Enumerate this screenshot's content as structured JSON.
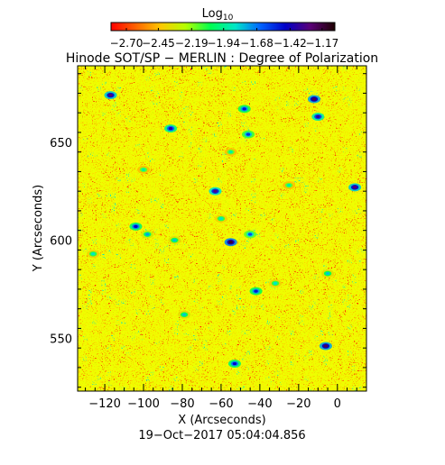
{
  "chart_data": {
    "type": "heatmap",
    "title": "Hinode SOT/SP − MERLIN : Degree of Polarization",
    "xlabel": "X (Arcseconds)",
    "ylabel": "Y (Arcseconds)",
    "xlim": [
      -134,
      15
    ],
    "ylim": [
      523,
      689
    ],
    "x_ticks": [
      -120,
      -100,
      -80,
      -60,
      -40,
      -20,
      0
    ],
    "x_tick_labels": [
      "−120",
      "−100",
      "−80",
      "−60",
      "−40",
      "−20",
      "0"
    ],
    "y_ticks": [
      550,
      600,
      650
    ],
    "y_tick_labels": [
      "550",
      "600",
      "650"
    ],
    "timestamp": "19−Oct−2017 05:04:04.856",
    "colorbar": {
      "title_base": "Log",
      "title_sub": "10",
      "scale": "log10",
      "range": [
        -2.82,
        -1.07
      ],
      "ticks": [
        -2.7,
        -2.45,
        -2.19,
        -1.94,
        -1.68,
        -1.42,
        -1.17
      ],
      "tick_labels": [
        "−2.70",
        "−2.45",
        "−2.19",
        "−1.94",
        "−1.68",
        "−1.42",
        "−1.17"
      ],
      "colors": [
        "#ff0000",
        "#ff6400",
        "#ffc800",
        "#b4ff00",
        "#00ff50",
        "#00e6c8",
        "#0064ff",
        "#0000c8",
        "#5a0078",
        "#1e0000"
      ]
    },
    "field": {
      "baseline_log10": -2.55,
      "grid": [
        60,
        64
      ],
      "patches": [
        {
          "x": -117,
          "y": 674,
          "value": -1.25
        },
        {
          "x": -86,
          "y": 657,
          "value": -1.4
        },
        {
          "x": -48,
          "y": 667,
          "value": -1.5
        },
        {
          "x": -46,
          "y": 654,
          "value": -1.55
        },
        {
          "x": -12,
          "y": 672,
          "value": -1.2
        },
        {
          "x": -10,
          "y": 663,
          "value": -1.35
        },
        {
          "x": -55,
          "y": 645,
          "value": -1.9
        },
        {
          "x": -63,
          "y": 625,
          "value": -1.3
        },
        {
          "x": 9,
          "y": 627,
          "value": -1.25
        },
        {
          "x": -104,
          "y": 607,
          "value": -1.45
        },
        {
          "x": -98,
          "y": 603,
          "value": -1.75
        },
        {
          "x": -84,
          "y": 600,
          "value": -1.8
        },
        {
          "x": -55,
          "y": 599,
          "value": -1.15
        },
        {
          "x": -45,
          "y": 603,
          "value": -1.6
        },
        {
          "x": -60,
          "y": 611,
          "value": -1.85
        },
        {
          "x": -42,
          "y": 574,
          "value": -1.5
        },
        {
          "x": -79,
          "y": 562,
          "value": -1.8
        },
        {
          "x": -126,
          "y": 593,
          "value": -1.85
        },
        {
          "x": -6,
          "y": 546,
          "value": -1.2
        },
        {
          "x": -53,
          "y": 537,
          "value": -1.45
        },
        {
          "x": -5,
          "y": 583,
          "value": -1.8
        },
        {
          "x": -25,
          "y": 628,
          "value": -1.9
        },
        {
          "x": -100,
          "y": 636,
          "value": -1.9
        },
        {
          "x": -32,
          "y": 578,
          "value": -1.85
        }
      ]
    }
  }
}
